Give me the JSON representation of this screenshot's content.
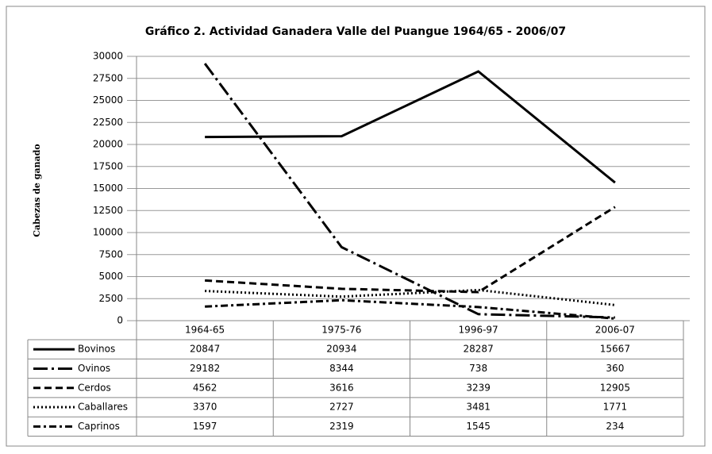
{
  "chart_data": {
    "type": "line",
    "title": "Gráfico 2. Actividad Ganadera Valle del Puangue 1964/65 - 2006/07",
    "y_label": "Cabezas de ganado",
    "categories": [
      "1964-65",
      "1975-76",
      "1996-97",
      "2006-07"
    ],
    "series": [
      {
        "name": "Bovinos",
        "color": "#000000",
        "dash": "solid",
        "values": [
          20847,
          20934,
          28287,
          15667
        ]
      },
      {
        "name": "Ovinos",
        "color": "#000000",
        "dash": "long-dash-dot",
        "values": [
          29182,
          8344,
          738,
          360
        ]
      },
      {
        "name": "Cerdos",
        "color": "#000000",
        "dash": "dash",
        "values": [
          4562,
          3616,
          3239,
          12905
        ]
      },
      {
        "name": "Caballares",
        "color": "#000000",
        "dash": "dot",
        "values": [
          3370,
          2727,
          3481,
          1771
        ]
      },
      {
        "name": "Caprinos",
        "color": "#000000",
        "dash": "dash-dot",
        "values": [
          1597,
          2319,
          1545,
          234
        ]
      }
    ],
    "ylim": [
      0,
      30000
    ],
    "yticks": [
      0,
      2500,
      5000,
      7500,
      10000,
      12500,
      15000,
      17500,
      20000,
      22500,
      25000,
      27500,
      30000
    ],
    "grid": true
  }
}
